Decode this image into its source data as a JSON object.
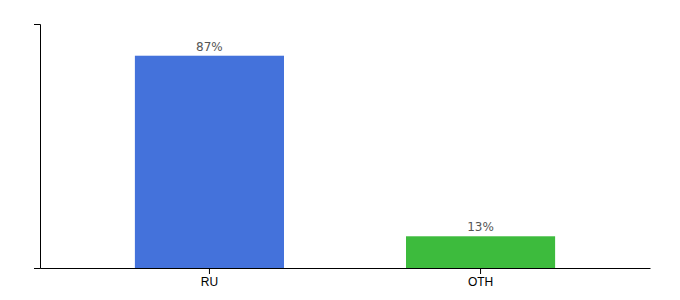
{
  "chart_data": {
    "type": "bar",
    "categories": [
      "RU",
      "OTH"
    ],
    "values": [
      87,
      13
    ],
    "colors": [
      "#4472db",
      "#3dbb3d"
    ],
    "value_labels": [
      "87%",
      "13%"
    ],
    "data_labels": true,
    "ylim": [
      0,
      100
    ],
    "tick_labels": "x"
  }
}
